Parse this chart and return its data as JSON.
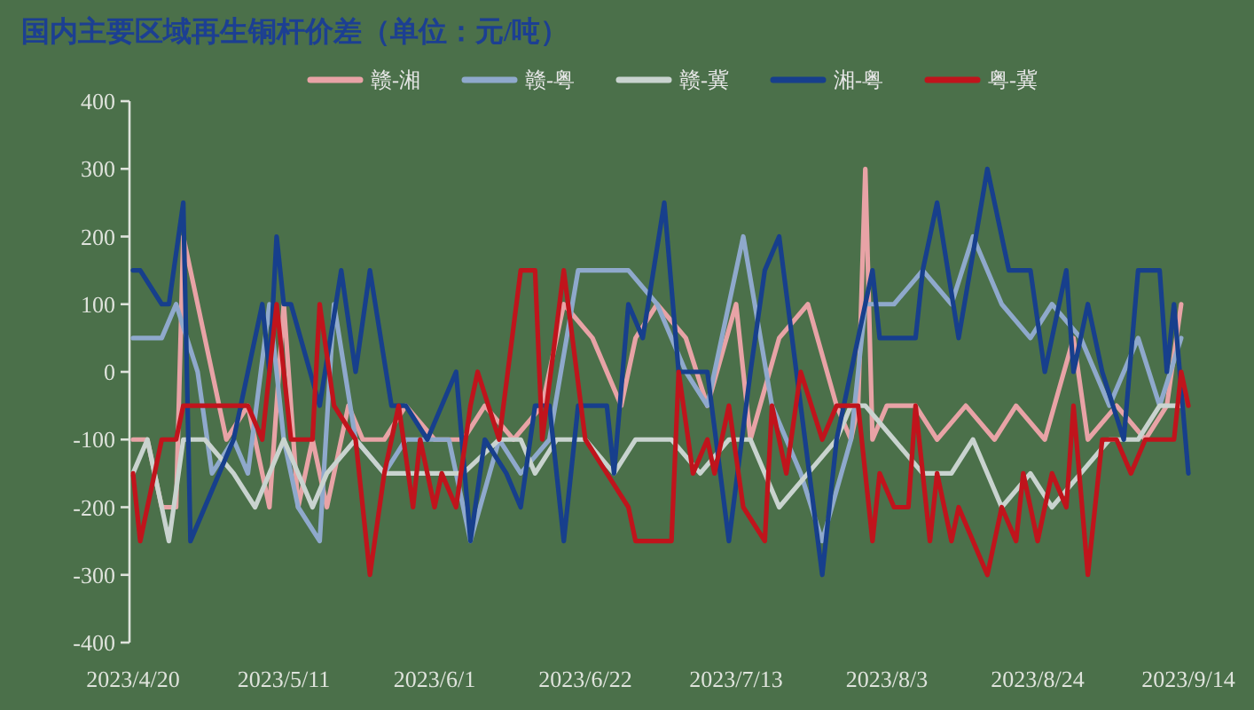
{
  "chart_data": {
    "type": "line",
    "title": "国内主要区域再生铜杆价差（单位：元/吨）",
    "legend": "top",
    "line_style": "solid",
    "xlim": [
      "2023-04-20",
      "2023-09-14"
    ],
    "xticks": [
      {
        "value": "2023-04-20",
        "label": "2023/4/20"
      },
      {
        "value": "2023-05-11",
        "label": "2023/5/11"
      },
      {
        "value": "2023-06-01",
        "label": "2023/6/1"
      },
      {
        "value": "2023-06-22",
        "label": "2023/6/22"
      },
      {
        "value": "2023-07-13",
        "label": "2023/7/13"
      },
      {
        "value": "2023-08-03",
        "label": "2023/8/3"
      },
      {
        "value": "2023-08-24",
        "label": "2023/8/24"
      },
      {
        "value": "2023-09-14",
        "label": "2023/9/14"
      }
    ],
    "ylim": [
      -400,
      400
    ],
    "yticks": [
      -400,
      -300,
      -200,
      -100,
      0,
      100,
      200,
      300,
      400
    ],
    "series": [
      {
        "name": "赣-湘",
        "color": "#e8a3a6",
        "x": [
          "2023-04-20",
          "2023-04-22",
          "2023-04-24",
          "2023-04-26",
          "2023-04-27",
          "2023-05-01",
          "2023-05-03",
          "2023-05-06",
          "2023-05-09",
          "2023-05-11",
          "2023-05-13",
          "2023-05-15",
          "2023-05-17",
          "2023-05-20",
          "2023-05-22",
          "2023-05-25",
          "2023-05-28",
          "2023-06-01",
          "2023-06-05",
          "2023-06-08",
          "2023-06-12",
          "2023-06-16",
          "2023-06-19",
          "2023-06-23",
          "2023-06-27",
          "2023-06-29",
          "2023-07-02",
          "2023-07-06",
          "2023-07-09",
          "2023-07-13",
          "2023-07-15",
          "2023-07-19",
          "2023-07-23",
          "2023-07-27",
          "2023-07-29",
          "2023-07-30",
          "2023-07-31",
          "2023-08-01",
          "2023-08-03",
          "2023-08-07",
          "2023-08-10",
          "2023-08-14",
          "2023-08-18",
          "2023-08-21",
          "2023-08-25",
          "2023-08-29",
          "2023-08-31",
          "2023-09-04",
          "2023-09-08",
          "2023-09-11",
          "2023-09-13"
        ],
        "values": [
          -100,
          -100,
          -200,
          -200,
          200,
          0,
          -100,
          -50,
          -200,
          100,
          -200,
          -100,
          -200,
          -50,
          -100,
          -100,
          -50,
          -100,
          -100,
          -50,
          -100,
          -50,
          100,
          50,
          -50,
          50,
          100,
          50,
          -50,
          100,
          -100,
          50,
          100,
          -50,
          -100,
          -50,
          300,
          -100,
          -50,
          -50,
          -100,
          -50,
          -100,
          -50,
          -100,
          50,
          -100,
          -50,
          -100,
          -50,
          100
        ]
      },
      {
        "name": "赣-粤",
        "color": "#8fa9cc",
        "x": [
          "2023-04-20",
          "2023-04-24",
          "2023-04-26",
          "2023-04-29",
          "2023-05-01",
          "2023-05-04",
          "2023-05-06",
          "2023-05-09",
          "2023-05-11",
          "2023-05-13",
          "2023-05-16",
          "2023-05-18",
          "2023-05-21",
          "2023-05-25",
          "2023-05-28",
          "2023-06-01",
          "2023-06-03",
          "2023-06-06",
          "2023-06-10",
          "2023-06-13",
          "2023-06-17",
          "2023-06-21",
          "2023-06-24",
          "2023-06-28",
          "2023-07-02",
          "2023-07-06",
          "2023-07-09",
          "2023-07-14",
          "2023-07-18",
          "2023-07-22",
          "2023-07-25",
          "2023-07-29",
          "2023-07-31",
          "2023-08-04",
          "2023-08-08",
          "2023-08-12",
          "2023-08-15",
          "2023-08-19",
          "2023-08-23",
          "2023-08-26",
          "2023-08-30",
          "2023-09-03",
          "2023-09-07",
          "2023-09-10",
          "2023-09-13"
        ],
        "values": [
          50,
          50,
          100,
          0,
          -150,
          -100,
          -150,
          100,
          -100,
          -200,
          -250,
          100,
          -100,
          -150,
          -100,
          -100,
          -100,
          -250,
          -100,
          -150,
          -100,
          150,
          150,
          150,
          100,
          0,
          -50,
          200,
          -50,
          -150,
          -250,
          -100,
          100,
          100,
          150,
          100,
          200,
          100,
          50,
          100,
          50,
          -50,
          50,
          -50,
          50
        ]
      },
      {
        "name": "赣-冀",
        "color": "#c9d3cf",
        "x": [
          "2023-04-20",
          "2023-04-22",
          "2023-04-25",
          "2023-04-27",
          "2023-04-30",
          "2023-05-04",
          "2023-05-07",
          "2023-05-11",
          "2023-05-15",
          "2023-05-17",
          "2023-05-21",
          "2023-05-25",
          "2023-05-28",
          "2023-06-05",
          "2023-06-10",
          "2023-06-13",
          "2023-06-15",
          "2023-06-18",
          "2023-06-22",
          "2023-06-26",
          "2023-06-29",
          "2023-07-04",
          "2023-07-08",
          "2023-07-12",
          "2023-07-15",
          "2023-07-19",
          "2023-07-23",
          "2023-07-27",
          "2023-07-29",
          "2023-07-31",
          "2023-08-04",
          "2023-08-08",
          "2023-08-12",
          "2023-08-15",
          "2023-08-19",
          "2023-08-23",
          "2023-08-26",
          "2023-08-30",
          "2023-09-03",
          "2023-09-07",
          "2023-09-10",
          "2023-09-13"
        ],
        "values": [
          -150,
          -100,
          -250,
          -100,
          -100,
          -150,
          -200,
          -100,
          -200,
          -150,
          -100,
          -150,
          -150,
          -150,
          -100,
          -100,
          -150,
          -100,
          -100,
          -150,
          -100,
          -100,
          -150,
          -100,
          -100,
          -200,
          -150,
          -100,
          -50,
          -50,
          -100,
          -150,
          -150,
          -100,
          -200,
          -150,
          -200,
          -150,
          -100,
          -100,
          -50,
          -50
        ]
      },
      {
        "name": "湘-粤",
        "color": "#173f8c",
        "x": [
          "2023-04-20",
          "2023-04-21",
          "2023-04-24",
          "2023-04-25",
          "2023-04-27",
          "2023-04-28",
          "2023-05-04",
          "2023-05-08",
          "2023-05-09",
          "2023-05-10",
          "2023-05-11",
          "2023-05-12",
          "2023-05-16",
          "2023-05-19",
          "2023-05-21",
          "2023-05-23",
          "2023-05-26",
          "2023-05-28",
          "2023-05-31",
          "2023-06-04",
          "2023-06-06",
          "2023-06-08",
          "2023-06-11",
          "2023-06-13",
          "2023-06-15",
          "2023-06-17",
          "2023-06-19",
          "2023-06-21",
          "2023-06-25",
          "2023-06-26",
          "2023-06-28",
          "2023-06-30",
          "2023-07-03",
          "2023-07-05",
          "2023-07-09",
          "2023-07-12",
          "2023-07-15",
          "2023-07-17",
          "2023-07-19",
          "2023-07-22",
          "2023-07-25",
          "2023-07-27",
          "2023-08-01",
          "2023-08-02",
          "2023-08-07",
          "2023-08-08",
          "2023-08-10",
          "2023-08-13",
          "2023-08-17",
          "2023-08-20",
          "2023-08-23",
          "2023-08-25",
          "2023-08-28",
          "2023-08-29",
          "2023-08-31",
          "2023-09-02",
          "2023-09-05",
          "2023-09-07",
          "2023-09-10",
          "2023-09-11",
          "2023-09-12",
          "2023-09-14"
        ],
        "values": [
          150,
          150,
          100,
          100,
          250,
          -250,
          -100,
          100,
          0,
          200,
          100,
          100,
          -50,
          150,
          0,
          150,
          -50,
          -50,
          -100,
          0,
          -250,
          -100,
          -150,
          -200,
          -50,
          -50,
          -250,
          -50,
          -50,
          -150,
          100,
          50,
          250,
          0,
          0,
          -250,
          0,
          150,
          200,
          -50,
          -300,
          -100,
          150,
          50,
          50,
          150,
          250,
          50,
          300,
          150,
          150,
          0,
          150,
          0,
          100,
          0,
          -100,
          150,
          150,
          0,
          100,
          -150
        ]
      },
      {
        "name": "粤-冀",
        "color": "#c0141c",
        "x": [
          "2023-04-20",
          "2023-04-21",
          "2023-04-24",
          "2023-04-26",
          "2023-04-27",
          "2023-05-04",
          "2023-05-06",
          "2023-05-08",
          "2023-05-10",
          "2023-05-12",
          "2023-05-15",
          "2023-05-16",
          "2023-05-18",
          "2023-05-21",
          "2023-05-23",
          "2023-05-25",
          "2023-05-27",
          "2023-05-29",
          "2023-05-30",
          "2023-06-01",
          "2023-06-02",
          "2023-06-04",
          "2023-06-06",
          "2023-06-07",
          "2023-06-10",
          "2023-06-13",
          "2023-06-15",
          "2023-06-16",
          "2023-06-19",
          "2023-06-22",
          "2023-06-25",
          "2023-06-28",
          "2023-06-29",
          "2023-07-04",
          "2023-07-05",
          "2023-07-07",
          "2023-07-09",
          "2023-07-10",
          "2023-07-12",
          "2023-07-14",
          "2023-07-17",
          "2023-07-18",
          "2023-07-20",
          "2023-07-22",
          "2023-07-25",
          "2023-07-27",
          "2023-07-30",
          "2023-08-01",
          "2023-08-02",
          "2023-08-04",
          "2023-08-06",
          "2023-08-07",
          "2023-08-09",
          "2023-08-10",
          "2023-08-12",
          "2023-08-13",
          "2023-08-15",
          "2023-08-17",
          "2023-08-19",
          "2023-08-21",
          "2023-08-22",
          "2023-08-24",
          "2023-08-26",
          "2023-08-28",
          "2023-08-29",
          "2023-08-31",
          "2023-09-01",
          "2023-09-02",
          "2023-09-04",
          "2023-09-06",
          "2023-09-08",
          "2023-09-12",
          "2023-09-13",
          "2023-09-14"
        ],
        "values": [
          -150,
          -250,
          -100,
          -100,
          -50,
          -50,
          -50,
          -100,
          100,
          -100,
          -100,
          100,
          -50,
          -100,
          -300,
          -150,
          -50,
          -200,
          -100,
          -200,
          -150,
          -200,
          -50,
          0,
          -100,
          150,
          150,
          -100,
          150,
          -100,
          -150,
          -200,
          -250,
          -250,
          0,
          -150,
          -100,
          -150,
          -50,
          -200,
          -250,
          -50,
          -150,
          0,
          -100,
          -50,
          -50,
          -250,
          -150,
          -200,
          -200,
          -50,
          -250,
          -150,
          -250,
          -200,
          -250,
          -300,
          -200,
          -250,
          -150,
          -250,
          -150,
          -200,
          -50,
          -300,
          -200,
          -100,
          -100,
          -150,
          -100,
          -100,
          0,
          -50
        ]
      }
    ]
  }
}
